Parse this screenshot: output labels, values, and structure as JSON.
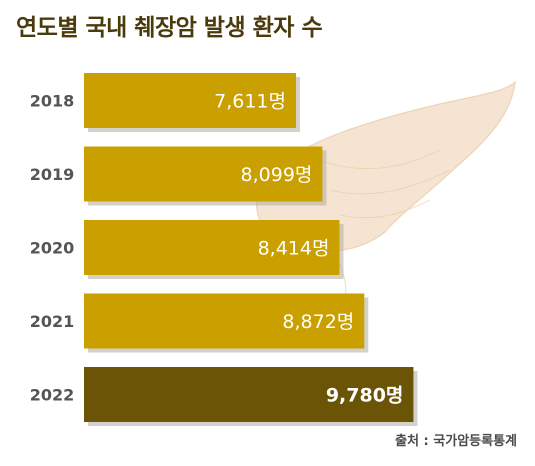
{
  "title": "연도별 국내 췌장암 발생 환자 수",
  "source": "출처 : 국가암등록통계",
  "colors": {
    "bar": "#c9a000",
    "highlight": "#6b5406",
    "shadow": "#b0aba0",
    "year_text": "#555555",
    "decor_fill": "#f2dcc4",
    "decor_stroke": "#e7c59c"
  },
  "chart_data": {
    "type": "bar",
    "orientation": "horizontal",
    "title": "연도별 국내 췌장암 발생 환자 수",
    "categories": [
      "2018",
      "2019",
      "2020",
      "2021",
      "2022"
    ],
    "values": [
      7611,
      8099,
      8414,
      8872,
      9780
    ],
    "value_labels": [
      "7,611명",
      "8,099명",
      "8,414명",
      "8,872명",
      "9,780명"
    ],
    "unit": "명",
    "highlight_index": 4,
    "legend": "none",
    "grid": false
  }
}
